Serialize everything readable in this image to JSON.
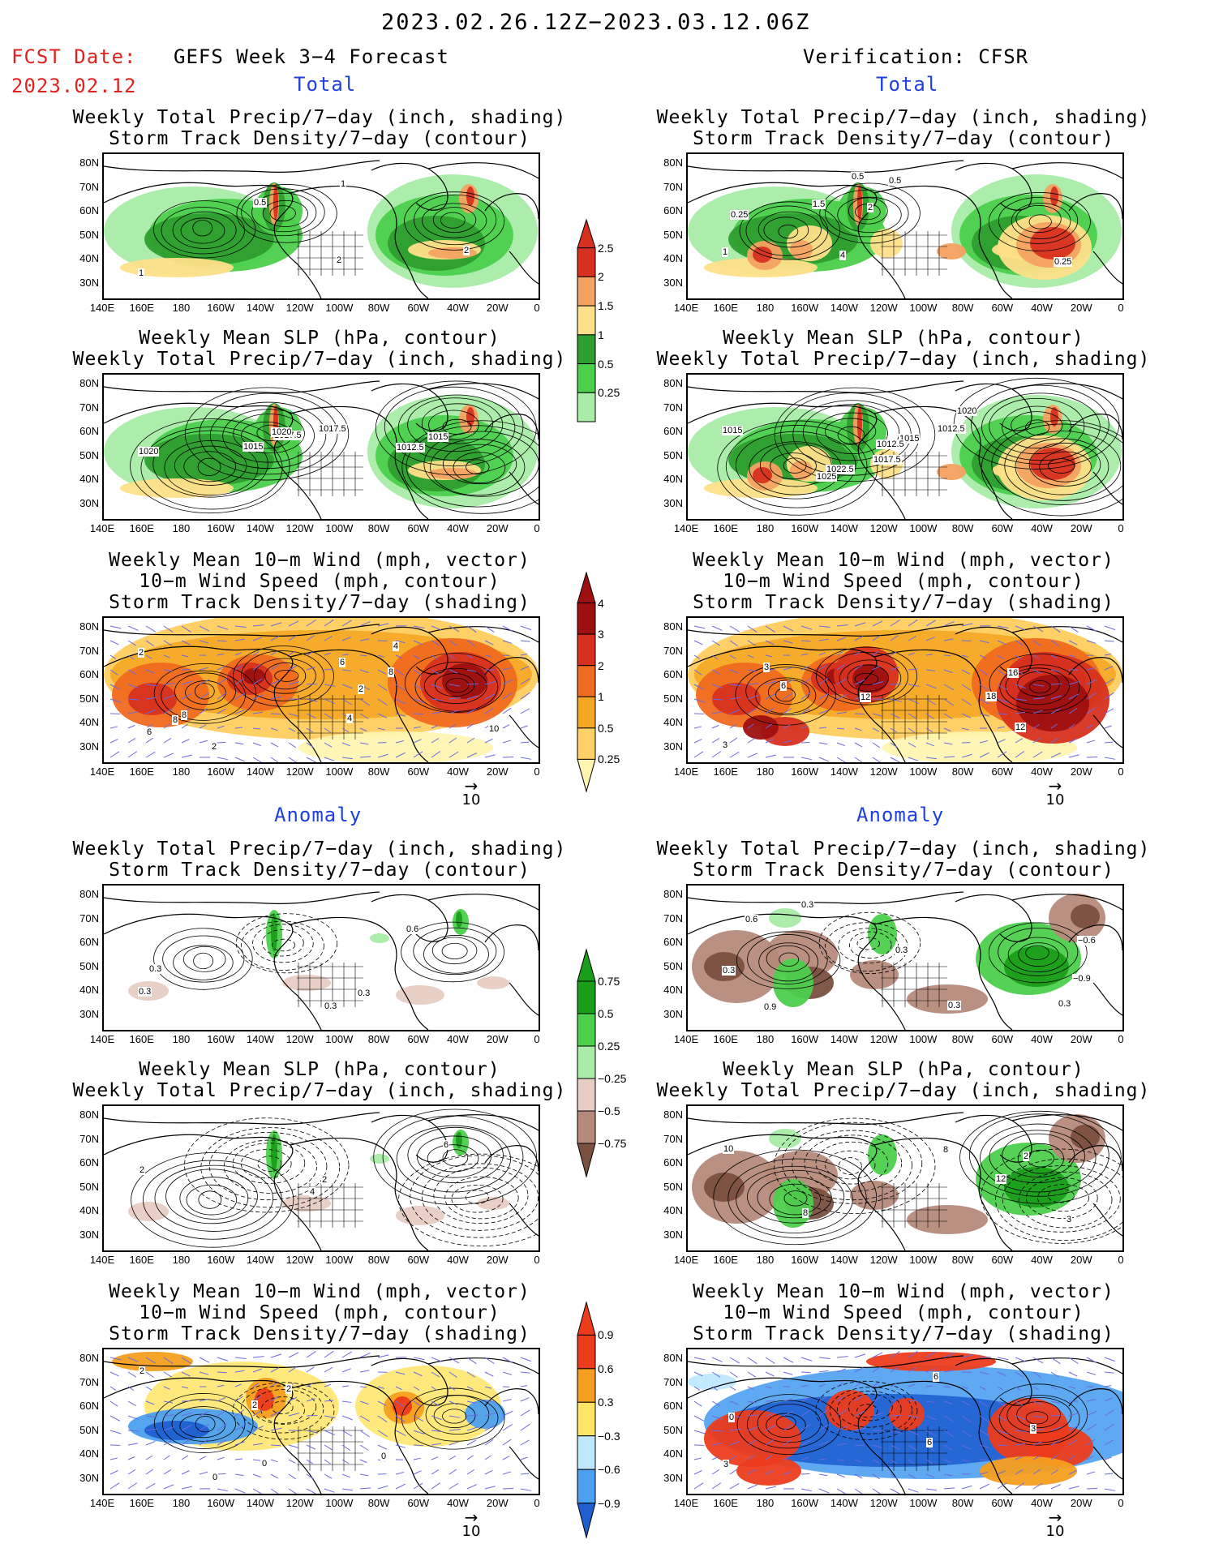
{
  "header": {
    "period": "2023.02.26.12Z−2023.03.12.06Z",
    "fcst_label": "FCST Date:",
    "fcst_date": "2023.02.12",
    "left_title": "GEFS Week 3−4 Forecast",
    "right_title": "Verification: CFSR",
    "section_total": "Total",
    "section_anomaly": "Anomaly"
  },
  "titles": {
    "precip_storm": [
      "Weekly Total Precip/7−day (inch, shading)",
      "Storm Track Density/7−day (contour)"
    ],
    "slp_precip": [
      "Weekly Mean SLP (hPa, contour)",
      "Weekly Total Precip/7−day (inch, shading)"
    ],
    "wind": [
      "Weekly Mean 10−m Wind (mph, vector)",
      "10−m Wind Speed (mph, contour)",
      "Storm Track Density/7−day (shading)"
    ]
  },
  "axes": {
    "lat_labels": [
      "80N",
      "70N",
      "60N",
      "50N",
      "40N",
      "30N"
    ],
    "lon_labels": [
      "140E",
      "160E",
      "180",
      "160W",
      "140W",
      "120W",
      "100W",
      "80W",
      "60W",
      "40W",
      "20W",
      "0"
    ]
  },
  "colorbars": {
    "precip_total": {
      "labels": [
        "2.5",
        "2",
        "1.5",
        "1",
        "0.5",
        "0.25"
      ],
      "colors": [
        "#d7301f",
        "#f4a261",
        "#ffe08a",
        "#2e9e2e",
        "#4cd04c",
        "#a8eca8"
      ]
    },
    "storm_total": {
      "labels": [
        "4",
        "3",
        "2",
        "1",
        "0.5",
        "0.25"
      ],
      "colors": [
        "#9e1010",
        "#d7301f",
        "#f06a1f",
        "#f5a623",
        "#ffd066",
        "#fff4b0"
      ]
    },
    "precip_anom": {
      "labels": [
        "0.75",
        "0.5",
        "0.25",
        "−0.25",
        "−0.5",
        "−0.75"
      ],
      "colors": [
        "#1a9e1a",
        "#4cd04c",
        "#a8eca8",
        "#e8cdc4",
        "#b58a7a",
        "#7a5040"
      ]
    },
    "storm_anom": {
      "labels": [
        "0.9",
        "0.6",
        "0.3",
        "−0.3",
        "−0.6",
        "−0.9"
      ],
      "colors": [
        "#ec3c1c",
        "#f59e1f",
        "#ffe566",
        "#bfe8ff",
        "#4ca0f0",
        "#1f5fd0"
      ]
    }
  },
  "vector_ref": "10",
  "contour_labels": {
    "p1": [
      "1",
      "2",
      "2",
      "1",
      "0.5"
    ],
    "p2": [
      "1",
      "0.5",
      "0.5",
      "0.25",
      "0.25",
      "1.5",
      "2",
      "4"
    ],
    "p3": [
      "1020",
      "1017.5",
      "1015",
      "1015",
      "1012.5",
      "1020",
      "1017.5"
    ],
    "p4": [
      "1015",
      "1022.5",
      "1025",
      "1020",
      "1017.5",
      "1015",
      "1012.5",
      "1012.5"
    ],
    "p5": [
      "2",
      "2",
      "4",
      "6",
      "8",
      "2",
      "8",
      "10",
      "8",
      "6",
      "4"
    ],
    "p6": [
      "3",
      "3",
      "6",
      "12",
      "12",
      "18",
      "16"
    ],
    "p7": [
      "0.3",
      "0.3",
      "0.3",
      "0.6",
      "0.3"
    ],
    "p8": [
      "0.3",
      "0.3",
      "0.6",
      "0.9",
      "0.3",
      "−0.9",
      "−0.6",
      "0.3",
      "0.3"
    ],
    "p9": [
      "2",
      "6",
      "2",
      "4"
    ],
    "p10": [
      "10",
      "12",
      "3",
      "2",
      "8",
      "8"
    ],
    "p11": [
      "2",
      "0",
      "2",
      "0",
      "2",
      "0"
    ],
    "p12": [
      "3",
      "6",
      "3",
      "6",
      "0"
    ]
  }
}
